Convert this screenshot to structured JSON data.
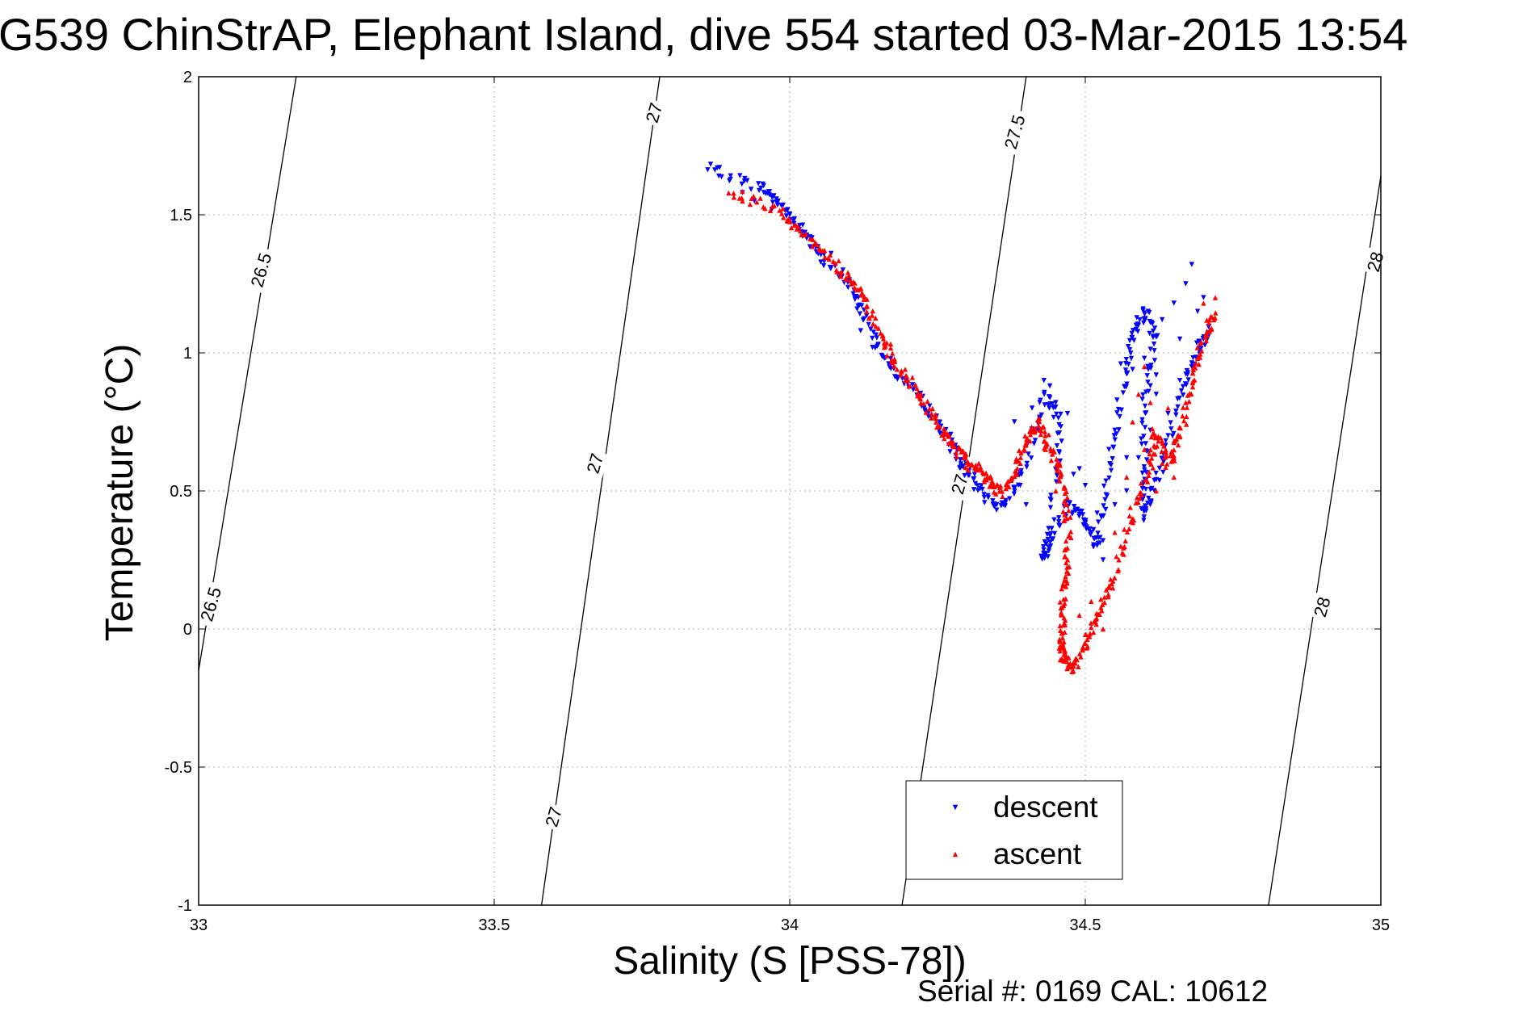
{
  "chart_data": {
    "type": "scatter",
    "title": "G539 ChinStrAP, Elephant Island, dive 554 started 03-Mar-2015 13:54",
    "xlabel": "Salinity (S [PSS-78])",
    "ylabel": "Temperature (°C)",
    "xlim": [
      33,
      35
    ],
    "ylim": [
      -1,
      2
    ],
    "x_ticks": [
      "33",
      "33.5",
      "34",
      "34.5",
      "35"
    ],
    "y_ticks": [
      "-1",
      "-0.5",
      "0",
      "0.5",
      "1",
      "1.5",
      "2"
    ],
    "grid": true,
    "legend_position": "bottom-center",
    "footer": "Serial #: 0169 CAL: 10612",
    "density_contours": [
      {
        "label": "26.5",
        "points": [
          [
            33.0,
            -0.15
          ],
          [
            33.165,
            2.0
          ]
        ]
      },
      {
        "label": "27",
        "points": [
          [
            33.58,
            -1.0
          ],
          [
            33.78,
            2.0
          ]
        ]
      },
      {
        "label": "27.5",
        "points": [
          [
            34.19,
            -1.0
          ],
          [
            34.4,
            2.0
          ]
        ]
      },
      {
        "label": "28",
        "points": [
          [
            34.81,
            -1.0
          ],
          [
            35.0,
            1.64
          ]
        ]
      }
    ],
    "contour_labels": [
      {
        "text": "26.5",
        "x": 33.105,
        "y": 1.3
      },
      {
        "text": "26.5",
        "x": 33.02,
        "y": 0.09
      },
      {
        "text": "27",
        "x": 33.77,
        "y": 1.87
      },
      {
        "text": "27",
        "x": 33.67,
        "y": 0.6
      },
      {
        "text": "27",
        "x": 33.6,
        "y": -0.68
      },
      {
        "text": "27.5",
        "x": 34.38,
        "y": 1.8
      },
      {
        "text": "27.5",
        "x": 34.29,
        "y": 0.55
      },
      {
        "text": "28",
        "x": 34.99,
        "y": 1.33
      },
      {
        "text": "28",
        "x": 34.9,
        "y": 0.08
      }
    ],
    "series": [
      {
        "name": "descent",
        "color": "#0000ff",
        "marker": "triangle-down",
        "path": [
          [
            33.86,
            1.67
          ],
          [
            33.95,
            1.6
          ],
          [
            33.98,
            1.55
          ],
          [
            34.02,
            1.45
          ],
          [
            34.05,
            1.35
          ],
          [
            34.1,
            1.25
          ],
          [
            34.13,
            1.12
          ],
          [
            34.17,
            0.95
          ],
          [
            34.22,
            0.83
          ],
          [
            34.26,
            0.72
          ],
          [
            34.29,
            0.6
          ],
          [
            34.32,
            0.5
          ],
          [
            34.36,
            0.43
          ],
          [
            34.4,
            0.6
          ],
          [
            34.43,
            0.85
          ],
          [
            34.46,
            0.75
          ],
          [
            34.44,
            0.35
          ],
          [
            34.43,
            0.25
          ],
          [
            34.47,
            0.45
          ],
          [
            34.5,
            0.4
          ],
          [
            34.52,
            0.3
          ],
          [
            34.54,
            0.55
          ],
          [
            34.56,
            0.85
          ],
          [
            34.58,
            1.05
          ],
          [
            34.6,
            1.15
          ],
          [
            34.62,
            1.05
          ],
          [
            34.6,
            0.8
          ],
          [
            34.6,
            0.55
          ],
          [
            34.6,
            0.4
          ],
          [
            34.63,
            0.6
          ],
          [
            34.66,
            0.85
          ],
          [
            34.69,
            1.0
          ],
          [
            34.71,
            1.1
          ]
        ],
        "scatter": [
          [
            33.88,
            1.64
          ],
          [
            33.92,
            1.58
          ],
          [
            33.94,
            1.55
          ],
          [
            33.97,
            1.52
          ],
          [
            34.0,
            1.5
          ],
          [
            34.03,
            1.42
          ],
          [
            34.07,
            1.36
          ],
          [
            34.09,
            1.3
          ],
          [
            34.11,
            1.2
          ],
          [
            34.12,
            1.08
          ],
          [
            34.14,
            1.02
          ],
          [
            34.16,
            0.98
          ],
          [
            34.38,
            0.75
          ],
          [
            34.39,
            0.52
          ],
          [
            34.4,
            0.45
          ],
          [
            34.41,
            0.8
          ],
          [
            34.42,
            0.72
          ],
          [
            34.43,
            0.9
          ],
          [
            34.44,
            0.88
          ],
          [
            34.45,
            0.82
          ],
          [
            34.46,
            0.68
          ],
          [
            34.47,
            0.78
          ],
          [
            34.48,
            0.56
          ],
          [
            34.49,
            0.58
          ],
          [
            34.5,
            0.52
          ],
          [
            34.51,
            0.35
          ],
          [
            34.52,
            0.42
          ],
          [
            34.53,
            0.25
          ],
          [
            34.54,
            0.65
          ],
          [
            34.55,
            0.72
          ],
          [
            34.56,
            0.96
          ],
          [
            34.57,
            0.62
          ],
          [
            34.58,
            0.94
          ],
          [
            34.59,
            1.1
          ],
          [
            34.6,
            0.98
          ],
          [
            34.61,
            0.72
          ],
          [
            34.62,
            0.85
          ],
          [
            34.63,
            1.12
          ],
          [
            34.64,
            0.78
          ],
          [
            34.65,
            1.18
          ],
          [
            34.66,
            0.9
          ],
          [
            34.67,
            1.25
          ],
          [
            34.68,
            1.32
          ],
          [
            34.69,
            1.15
          ],
          [
            34.7,
            1.05
          ],
          [
            34.57,
            0.5
          ],
          [
            34.55,
            0.45
          ],
          [
            34.53,
            0.32
          ],
          [
            34.59,
            0.62
          ],
          [
            34.61,
            0.45
          ],
          [
            34.64,
            0.7
          ],
          [
            34.66,
            1.05
          ],
          [
            34.68,
            0.95
          ],
          [
            34.7,
            1.2
          ],
          [
            34.62,
            0.92
          ]
        ]
      },
      {
        "name": "ascent",
        "color": "#ff0000",
        "marker": "triangle-up",
        "path": [
          [
            33.9,
            1.58
          ],
          [
            33.98,
            1.52
          ],
          [
            34.03,
            1.42
          ],
          [
            34.08,
            1.32
          ],
          [
            34.12,
            1.22
          ],
          [
            34.15,
            1.08
          ],
          [
            34.18,
            0.95
          ],
          [
            34.22,
            0.85
          ],
          [
            34.25,
            0.74
          ],
          [
            34.28,
            0.66
          ],
          [
            34.3,
            0.6
          ],
          [
            34.33,
            0.56
          ],
          [
            34.35,
            0.5
          ],
          [
            34.38,
            0.55
          ],
          [
            34.4,
            0.68
          ],
          [
            34.42,
            0.75
          ],
          [
            34.44,
            0.65
          ],
          [
            34.46,
            0.55
          ],
          [
            34.47,
            0.4
          ],
          [
            34.47,
            0.22
          ],
          [
            34.46,
            0.08
          ],
          [
            34.46,
            -0.04
          ],
          [
            34.46,
            -0.1
          ],
          [
            34.48,
            -0.14
          ],
          [
            34.5,
            -0.05
          ],
          [
            34.52,
            0.05
          ],
          [
            34.55,
            0.2
          ],
          [
            34.58,
            0.42
          ],
          [
            34.61,
            0.6
          ],
          [
            34.62,
            0.72
          ],
          [
            34.64,
            0.6
          ],
          [
            34.66,
            0.7
          ],
          [
            34.68,
            0.9
          ],
          [
            34.7,
            1.05
          ],
          [
            34.72,
            1.15
          ]
        ],
        "scatter": [
          [
            33.92,
            1.55
          ],
          [
            34.0,
            1.48
          ],
          [
            34.05,
            1.38
          ],
          [
            34.1,
            1.28
          ],
          [
            34.13,
            1.15
          ],
          [
            34.16,
            1.02
          ],
          [
            34.2,
            0.9
          ],
          [
            34.24,
            0.78
          ],
          [
            34.27,
            0.7
          ],
          [
            34.32,
            0.6
          ],
          [
            34.34,
            0.55
          ],
          [
            34.36,
            0.48
          ],
          [
            34.39,
            0.6
          ],
          [
            34.41,
            0.72
          ],
          [
            34.43,
            0.68
          ],
          [
            34.45,
            0.5
          ],
          [
            34.49,
            0.05
          ],
          [
            34.5,
            -0.02
          ],
          [
            34.51,
            0.1
          ],
          [
            34.53,
            0.0
          ],
          [
            34.54,
            0.15
          ],
          [
            34.56,
            0.3
          ],
          [
            34.57,
            0.55
          ],
          [
            34.58,
            0.75
          ],
          [
            34.59,
            0.85
          ],
          [
            34.6,
            0.65
          ],
          [
            34.61,
            0.82
          ],
          [
            34.62,
            0.5
          ],
          [
            34.63,
            0.6
          ],
          [
            34.64,
            0.8
          ],
          [
            34.65,
            0.55
          ],
          [
            34.67,
            0.82
          ],
          [
            34.69,
            0.98
          ],
          [
            34.71,
            1.08
          ],
          [
            34.72,
            1.2
          ],
          [
            34.6,
            0.95
          ],
          [
            34.58,
            0.4
          ],
          [
            34.55,
            0.35
          ],
          [
            34.63,
            0.68
          ],
          [
            34.65,
            0.62
          ],
          [
            34.71,
            1.12
          ],
          [
            34.7,
            1.18
          ]
        ]
      }
    ]
  }
}
